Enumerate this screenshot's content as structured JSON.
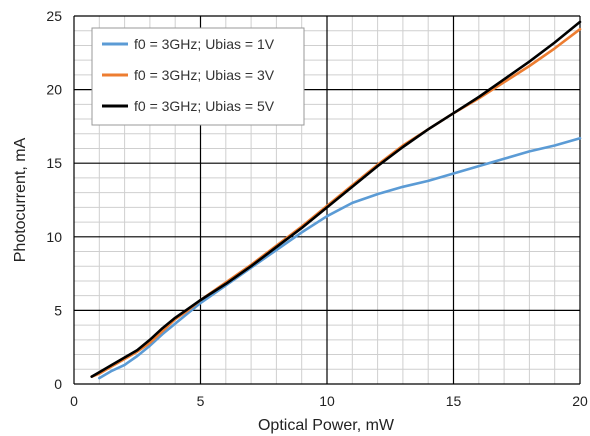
{
  "chart_data": {
    "type": "line",
    "xlabel": "Optical Power, mW",
    "ylabel": "Photocurrent, mA",
    "xlim": [
      0,
      20
    ],
    "ylim": [
      0,
      25
    ],
    "x_major_ticks": [
      0,
      5,
      10,
      15,
      20
    ],
    "y_major_ticks": [
      0,
      5,
      10,
      15,
      20,
      25
    ],
    "x_minor_step": 1,
    "y_minor_step": 1,
    "grid": true,
    "legend_position": "top-left",
    "series": [
      {
        "name": "f0 = 3GHz; Ubias = 1V",
        "color": "#5b9bd5",
        "points": [
          [
            1.0,
            0.4
          ],
          [
            1.5,
            0.9
          ],
          [
            2.0,
            1.3
          ],
          [
            2.5,
            1.9
          ],
          [
            3.0,
            2.6
          ],
          [
            3.5,
            3.4
          ],
          [
            4.0,
            4.1
          ],
          [
            4.5,
            4.8
          ],
          [
            5.0,
            5.5
          ],
          [
            6.0,
            6.7
          ],
          [
            7.0,
            7.9
          ],
          [
            8.0,
            9.1
          ],
          [
            9.0,
            10.3
          ],
          [
            10.0,
            11.4
          ],
          [
            11.0,
            12.3
          ],
          [
            12.0,
            12.9
          ],
          [
            13.0,
            13.4
          ],
          [
            14.0,
            13.8
          ],
          [
            15.0,
            14.3
          ],
          [
            16.0,
            14.8
          ],
          [
            17.0,
            15.3
          ],
          [
            18.0,
            15.8
          ],
          [
            19.0,
            16.2
          ],
          [
            20.0,
            16.7
          ]
        ]
      },
      {
        "name": "f0 = 3GHz; Ubias = 3V",
        "color": "#ed7d31",
        "points": [
          [
            0.7,
            0.5
          ],
          [
            1.0,
            0.7
          ],
          [
            1.5,
            1.2
          ],
          [
            2.0,
            1.7
          ],
          [
            2.5,
            2.2
          ],
          [
            3.0,
            2.8
          ],
          [
            3.5,
            3.6
          ],
          [
            4.0,
            4.4
          ],
          [
            4.5,
            5.0
          ],
          [
            5.0,
            5.7
          ],
          [
            6.0,
            6.9
          ],
          [
            7.0,
            8.1
          ],
          [
            8.0,
            9.4
          ],
          [
            9.0,
            10.7
          ],
          [
            10.0,
            12.1
          ],
          [
            11.0,
            13.5
          ],
          [
            12.0,
            14.9
          ],
          [
            13.0,
            16.2
          ],
          [
            14.0,
            17.3
          ],
          [
            15.0,
            18.4
          ],
          [
            16.0,
            19.4
          ],
          [
            17.0,
            20.5
          ],
          [
            18.0,
            21.6
          ],
          [
            19.0,
            22.8
          ],
          [
            20.0,
            24.1
          ]
        ]
      },
      {
        "name": "f0 = 3GHz; Ubias = 5V",
        "color": "#000000",
        "points": [
          [
            0.7,
            0.5
          ],
          [
            1.0,
            0.8
          ],
          [
            1.5,
            1.3
          ],
          [
            2.0,
            1.8
          ],
          [
            2.5,
            2.3
          ],
          [
            3.0,
            3.0
          ],
          [
            3.5,
            3.8
          ],
          [
            4.0,
            4.5
          ],
          [
            4.5,
            5.1
          ],
          [
            5.0,
            5.7
          ],
          [
            6.0,
            6.8
          ],
          [
            7.0,
            8.0
          ],
          [
            8.0,
            9.3
          ],
          [
            9.0,
            10.6
          ],
          [
            10.0,
            12.0
          ],
          [
            11.0,
            13.4
          ],
          [
            12.0,
            14.8
          ],
          [
            13.0,
            16.1
          ],
          [
            14.0,
            17.3
          ],
          [
            15.0,
            18.4
          ],
          [
            16.0,
            19.5
          ],
          [
            17.0,
            20.7
          ],
          [
            18.0,
            21.9
          ],
          [
            19.0,
            23.2
          ],
          [
            20.0,
            24.6
          ]
        ]
      }
    ]
  },
  "colors": {
    "major_grid": "#000000",
    "minor_grid": "#cfcfcf",
    "background": "#ffffff"
  }
}
